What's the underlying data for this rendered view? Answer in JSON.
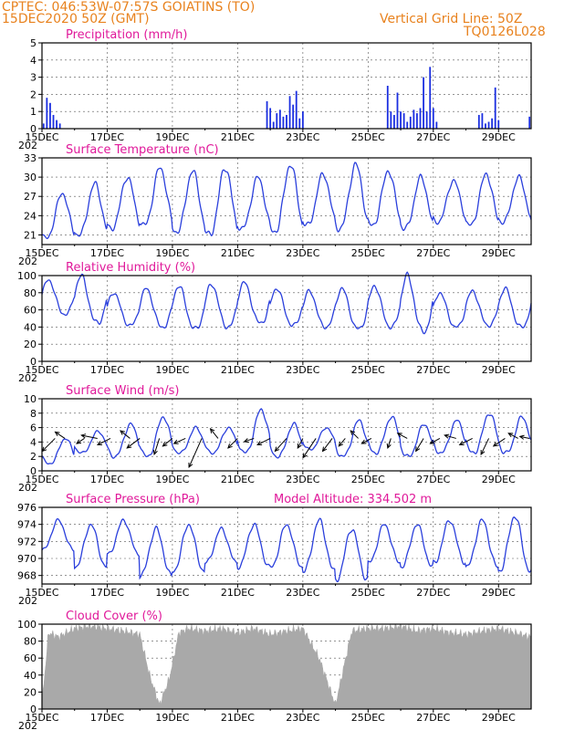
{
  "header": {
    "line1": "CPTEC:   046:53W-07:57S   GOIATINS (TO)",
    "line2": "15DEC2020 50Z (GMT)",
    "grid_note": "Vertical Grid Line: 50Z",
    "code": "TQ0126L028"
  },
  "colors": {
    "header": "#e8821e",
    "title": "#e0199a",
    "series": "#2a3fdc",
    "cloud": "#a9a9a9",
    "bar": "#1a2ee0"
  },
  "x_axis": {
    "ticks": [
      "15DEC",
      "17DEC",
      "19DEC",
      "21DEC",
      "23DEC",
      "25DEC",
      "27DEC",
      "29DEC"
    ],
    "start_year_label": "202",
    "range_days": [
      0,
      15
    ]
  },
  "chart_data": [
    {
      "type": "bar",
      "title": "Precipitation (mm/h)",
      "ylim": [
        0,
        5
      ],
      "yticks": [
        0,
        1,
        2,
        3,
        4,
        5
      ],
      "grid": true,
      "x": [
        0.05,
        0.15,
        0.25,
        0.35,
        0.45,
        0.55,
        6.9,
        7.0,
        7.1,
        7.2,
        7.3,
        7.4,
        7.5,
        7.6,
        7.7,
        7.8,
        7.9,
        8.0,
        10.6,
        10.7,
        10.8,
        10.9,
        11.0,
        11.1,
        11.2,
        11.3,
        11.4,
        11.5,
        11.6,
        11.7,
        11.8,
        11.9,
        12.0,
        12.1,
        13.4,
        13.5,
        13.6,
        13.7,
        13.8,
        13.9,
        14.0,
        14.95
      ],
      "values": [
        0.3,
        1.8,
        1.5,
        0.8,
        0.5,
        0.3,
        1.6,
        1.2,
        0.4,
        0.9,
        1.1,
        0.7,
        0.8,
        1.9,
        1.4,
        2.2,
        0.6,
        1.0,
        2.5,
        1.0,
        0.8,
        2.1,
        1.0,
        0.9,
        0.4,
        0.7,
        1.1,
        0.9,
        1.2,
        3.0,
        1.0,
        3.6,
        1.2,
        0.4,
        0.8,
        0.9,
        0.3,
        0.4,
        0.6,
        2.4,
        0.5,
        0.7
      ]
    },
    {
      "type": "line",
      "title": "Surface Temperature (nC)",
      "ylim": [
        19.5,
        33
      ],
      "yticks": [
        21,
        24,
        27,
        30,
        33
      ],
      "grid": true,
      "peaks": [
        27.5,
        29.0,
        30.0,
        31.5,
        31.0,
        31.5,
        30.0,
        32.0,
        30.5,
        32.0,
        31.0,
        30.0,
        29.5,
        30.5,
        30.0,
        31.0
      ],
      "troughs": [
        20.5,
        21.0,
        22.0,
        22.5,
        21.5,
        21.0,
        22.0,
        21.5,
        22.5,
        22.0,
        22.5,
        22.0,
        23.0,
        22.5,
        23.0,
        22.5
      ],
      "phase": 0.62,
      "start": 26.0
    },
    {
      "type": "line",
      "title": "Relative Humidity (%)",
      "ylim": [
        0,
        100
      ],
      "yticks": [
        0,
        20,
        40,
        60,
        80,
        100
      ],
      "grid": true,
      "peaks": [
        95,
        100,
        80,
        85,
        88,
        90,
        92,
        85,
        82,
        85,
        88,
        100,
        80,
        82,
        85,
        85
      ],
      "troughs": [
        55,
        45,
        42,
        40,
        38,
        40,
        45,
        42,
        40,
        38,
        40,
        35,
        40,
        42,
        40,
        42
      ],
      "phase": 0.2,
      "start": 50
    },
    {
      "type": "line",
      "title": "Surface Wind (m/s)",
      "ylim": [
        0,
        10
      ],
      "yticks": [
        0,
        2,
        4,
        6,
        8,
        10
      ],
      "grid": true,
      "peaks": [
        4.5,
        5.5,
        6.5,
        7.5,
        6.0,
        6.0,
        8.5,
        6.5,
        6.0,
        7.0,
        7.5,
        6.5,
        7.0,
        8.0,
        7.5,
        7.0
      ],
      "troughs": [
        1.0,
        2.5,
        2.0,
        2.0,
        2.5,
        2.5,
        2.5,
        2.0,
        3.0,
        2.0,
        2.5,
        2.0,
        2.5,
        2.5,
        2.5,
        3.0
      ],
      "phase": 0.72,
      "start": 3.0,
      "vectors": [
        {
          "x": 0.4,
          "u": -2.0,
          "v": -2.0
        },
        {
          "x": 0.7,
          "u": -1.5,
          "v": 1.0
        },
        {
          "x": 1.3,
          "u": -1.2,
          "v": -0.8
        },
        {
          "x": 1.7,
          "u": -2.5,
          "v": 0.5
        },
        {
          "x": 2.1,
          "u": -2.0,
          "v": -1.0
        },
        {
          "x": 2.7,
          "u": -1.5,
          "v": 1.2
        },
        {
          "x": 3.0,
          "u": -2.0,
          "v": -1.5
        },
        {
          "x": 3.6,
          "u": -0.8,
          "v": -2.5
        },
        {
          "x": 4.0,
          "u": -1.5,
          "v": -1.2
        },
        {
          "x": 4.4,
          "u": -1.8,
          "v": -0.8
        },
        {
          "x": 4.9,
          "u": -2.0,
          "v": -4.5
        },
        {
          "x": 5.4,
          "u": -1.2,
          "v": 1.5
        },
        {
          "x": 6.0,
          "u": -1.5,
          "v": -1.5
        },
        {
          "x": 6.5,
          "u": -1.5,
          "v": -0.5
        },
        {
          "x": 7.0,
          "u": -2.0,
          "v": -1.0
        },
        {
          "x": 7.5,
          "u": -1.8,
          "v": -2.0
        },
        {
          "x": 8.0,
          "u": -0.8,
          "v": -1.5
        },
        {
          "x": 8.4,
          "u": -2.0,
          "v": -3.0
        },
        {
          "x": 8.9,
          "u": -1.5,
          "v": -2.0
        },
        {
          "x": 9.3,
          "u": -1.0,
          "v": -1.2
        },
        {
          "x": 9.7,
          "u": -1.2,
          "v": 1.2
        },
        {
          "x": 10.1,
          "u": -1.5,
          "v": -0.8
        },
        {
          "x": 10.7,
          "u": -0.5,
          "v": -1.5
        },
        {
          "x": 11.2,
          "u": -1.5,
          "v": 0.8
        },
        {
          "x": 11.7,
          "u": -1.2,
          "v": -2.0
        },
        {
          "x": 12.2,
          "u": -1.5,
          "v": -0.8
        },
        {
          "x": 12.7,
          "u": -1.8,
          "v": 0.5
        },
        {
          "x": 13.2,
          "u": -2.0,
          "v": -1.0
        },
        {
          "x": 13.7,
          "u": -1.2,
          "v": -2.5
        },
        {
          "x": 14.2,
          "u": -1.8,
          "v": -1.2
        },
        {
          "x": 14.6,
          "u": -1.5,
          "v": 0.8
        },
        {
          "x": 14.95,
          "u": -1.5,
          "v": 0.3
        }
      ]
    },
    {
      "type": "line",
      "title": "Surface Pressure (hPa)",
      "annotation": "Model Altitude: 334.502 m",
      "ylim": [
        967,
        976
      ],
      "yticks": [
        968,
        970,
        972,
        974,
        976
      ],
      "grid": true,
      "peaks": [
        974.5,
        974.0,
        974.5,
        973.5,
        974.0,
        973.5,
        974.0,
        974.0,
        974.5,
        973.5,
        974.0,
        974.0,
        974.5,
        974.5,
        975.0,
        974.5
      ],
      "troughs": [
        971.0,
        969.0,
        970.5,
        968.0,
        968.5,
        969.5,
        969.0,
        969.0,
        968.5,
        967.5,
        969.5,
        969.0,
        969.5,
        969.0,
        968.5,
        968.5
      ],
      "phase": 0.5,
      "start": 971.5
    },
    {
      "type": "area",
      "title": "Cloud Cover (%)",
      "ylim": [
        0,
        100
      ],
      "yticks": [
        0,
        20,
        40,
        60,
        80,
        100
      ],
      "grid": true,
      "x": [
        0,
        0.2,
        0.5,
        1.0,
        1.5,
        2.0,
        2.5,
        3.0,
        3.3,
        3.6,
        3.9,
        4.2,
        4.5,
        5.0,
        5.5,
        6.0,
        6.5,
        7.0,
        7.5,
        8.0,
        8.5,
        9.0,
        9.5,
        10.0,
        10.5,
        11.0,
        11.5,
        12.0,
        12.5,
        13.0,
        13.5,
        14.0,
        14.5,
        15.0
      ],
      "values": [
        5,
        90,
        85,
        95,
        98,
        95,
        92,
        88,
        40,
        5,
        35,
        90,
        95,
        92,
        95,
        90,
        95,
        88,
        92,
        95,
        60,
        5,
        92,
        95,
        95,
        98,
        92,
        95,
        90,
        88,
        92,
        95,
        90,
        85
      ]
    }
  ]
}
